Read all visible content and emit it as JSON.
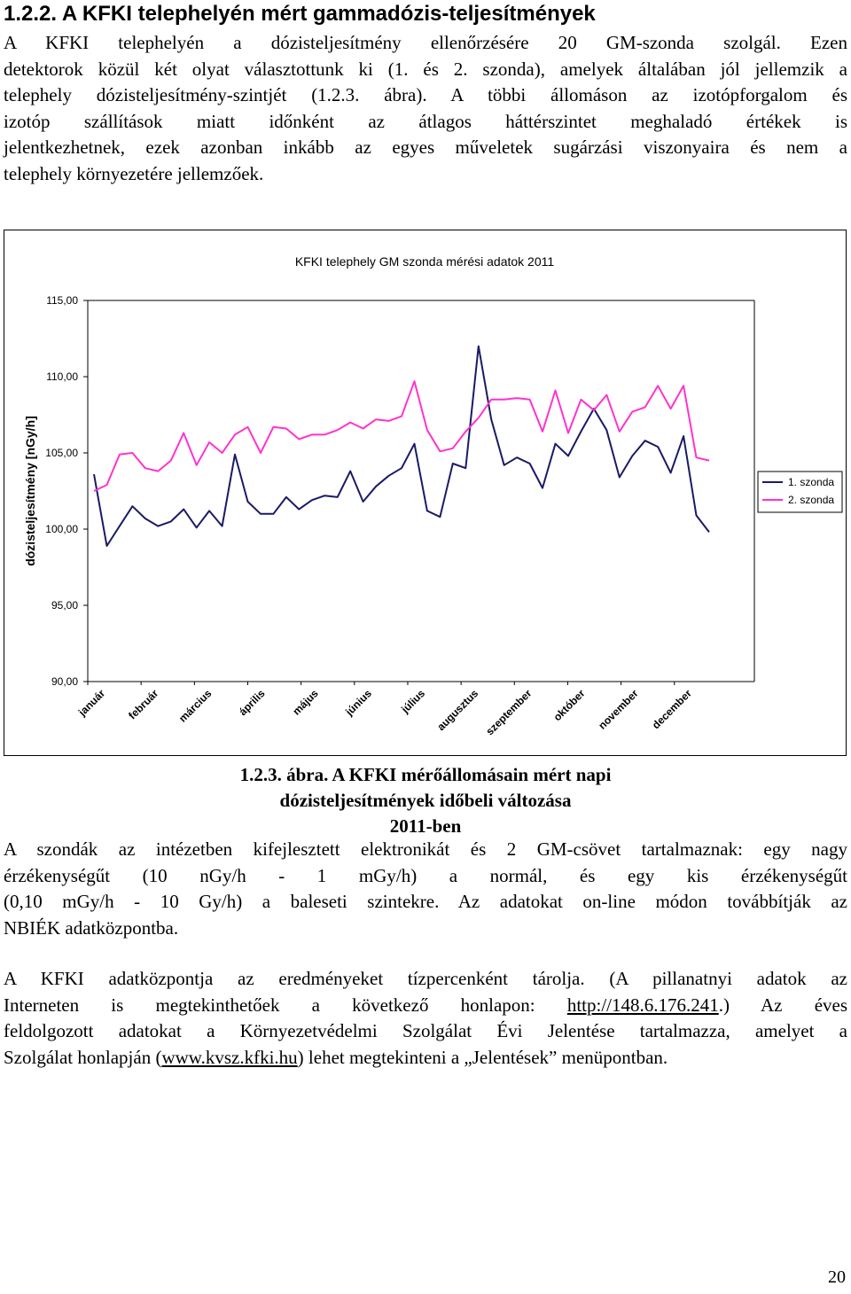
{
  "heading": "1.2.2. A KFKI telephelyén mért gammadózis-teljesítmények",
  "para1_lines": [
    "A KFKI telephelyén a dózisteljesítmény ellenőrzésére 20 GM-szonda szolgál. Ezen",
    "detektorok közül két olyat választottunk ki (1. és 2. szonda), amelyek általában jól jellemzik a",
    "telephely dózisteljesítmény-szintjét (1.2.3. ábra). A többi állomáson az izotópforgalom és",
    "izotóp szállítások miatt időnként az átlagos háttérszintet meghaladó értékek is",
    "jelentkezhetnek, ezek azonban inkább az egyes műveletek sugárzási viszonyaira és nem a",
    "telephely környezetére jellemzőek."
  ],
  "chart_data": {
    "type": "line",
    "title": "KFKI telephely GM szonda mérési adatok 2011",
    "ylabel": "dózisteljesítmény [nGy/h]",
    "xlabel": "",
    "ylim": [
      90,
      115
    ],
    "yticks": [
      "90,00",
      "95,00",
      "100,00",
      "105,00",
      "110,00",
      "115,00"
    ],
    "ytick_values": [
      90,
      95,
      100,
      105,
      110,
      115
    ],
    "months": [
      "január",
      "február",
      "március",
      "április",
      "május",
      "június",
      "július",
      "augusztus",
      "szeptember",
      "október",
      "november",
      "december"
    ],
    "grid": false,
    "legend": "right",
    "series": [
      {
        "name": "1. szonda",
        "color": "#1a1a66",
        "values": [
          103.6,
          98.9,
          100.2,
          101.5,
          100.7,
          100.2,
          100.5,
          101.3,
          100.1,
          101.2,
          100.2,
          104.9,
          101.8,
          101.0,
          101.0,
          102.1,
          101.3,
          101.9,
          102.2,
          102.1,
          103.8,
          101.8,
          102.8,
          103.5,
          104.0,
          105.6,
          101.2,
          100.8,
          104.3,
          104.0,
          112.0,
          107.2,
          104.2,
          104.7,
          104.3,
          102.7,
          105.6,
          104.8,
          106.4,
          107.9,
          106.5,
          103.4,
          104.8,
          105.8,
          105.4,
          103.7,
          106.1,
          100.9,
          99.8
        ]
      },
      {
        "name": "2. szonda",
        "color": "#ff33cc",
        "values": [
          102.5,
          102.9,
          104.9,
          105.0,
          104.0,
          103.8,
          104.5,
          106.3,
          104.2,
          105.7,
          105.0,
          106.2,
          106.7,
          105.0,
          106.7,
          106.6,
          105.9,
          106.2,
          106.2,
          106.5,
          107.0,
          106.6,
          107.2,
          107.1,
          107.4,
          109.7,
          106.5,
          105.1,
          105.3,
          106.4,
          107.3,
          108.5,
          108.5,
          108.6,
          108.5,
          106.4,
          109.1,
          106.3,
          108.5,
          107.8,
          108.8,
          106.4,
          107.7,
          108.0,
          109.4,
          107.9,
          109.4,
          104.7,
          104.5
        ]
      }
    ]
  },
  "caption_lines": [
    "1.2.3. ábra. A KFKI mérőállomásain mért napi dózisteljesítmények időbeli változása",
    "2011-ben"
  ],
  "para2_lines": [
    "A szondák az intézetben kifejlesztett elektronikát és 2 GM-csövet tartalmaznak: egy nagy",
    "érzékenységűt (10 nGy/h - 1 mGy/h) a normál, és egy kis érzékenységűt",
    "(0,10 mGy/h - 10 Gy/h) a baleseti szintekre. Az adatokat on-line módon továbbítják az",
    "NBIÉK adatközpontba."
  ],
  "para3": {
    "line1": "A KFKI adatközpontja az eredményeket tízpercenként tárolja. (A pillanatnyi adatok az",
    "line2_pre": "Interneten is megtekinthetőek a következő honlapon: ",
    "link1": "http://148.6.176.241",
    "line2_post": ".) Az éves",
    "line3": "feldolgozott adatokat a Környezetvédelmi Szolgálat Évi Jelentése tartalmazza, amelyet a",
    "line4_pre": "Szolgálat honlapján (",
    "link2": "www.kvsz.kfki.hu",
    "line4_post": ") lehet megtekinteni a „Jelentések” menüpontban."
  },
  "page_number": "20"
}
